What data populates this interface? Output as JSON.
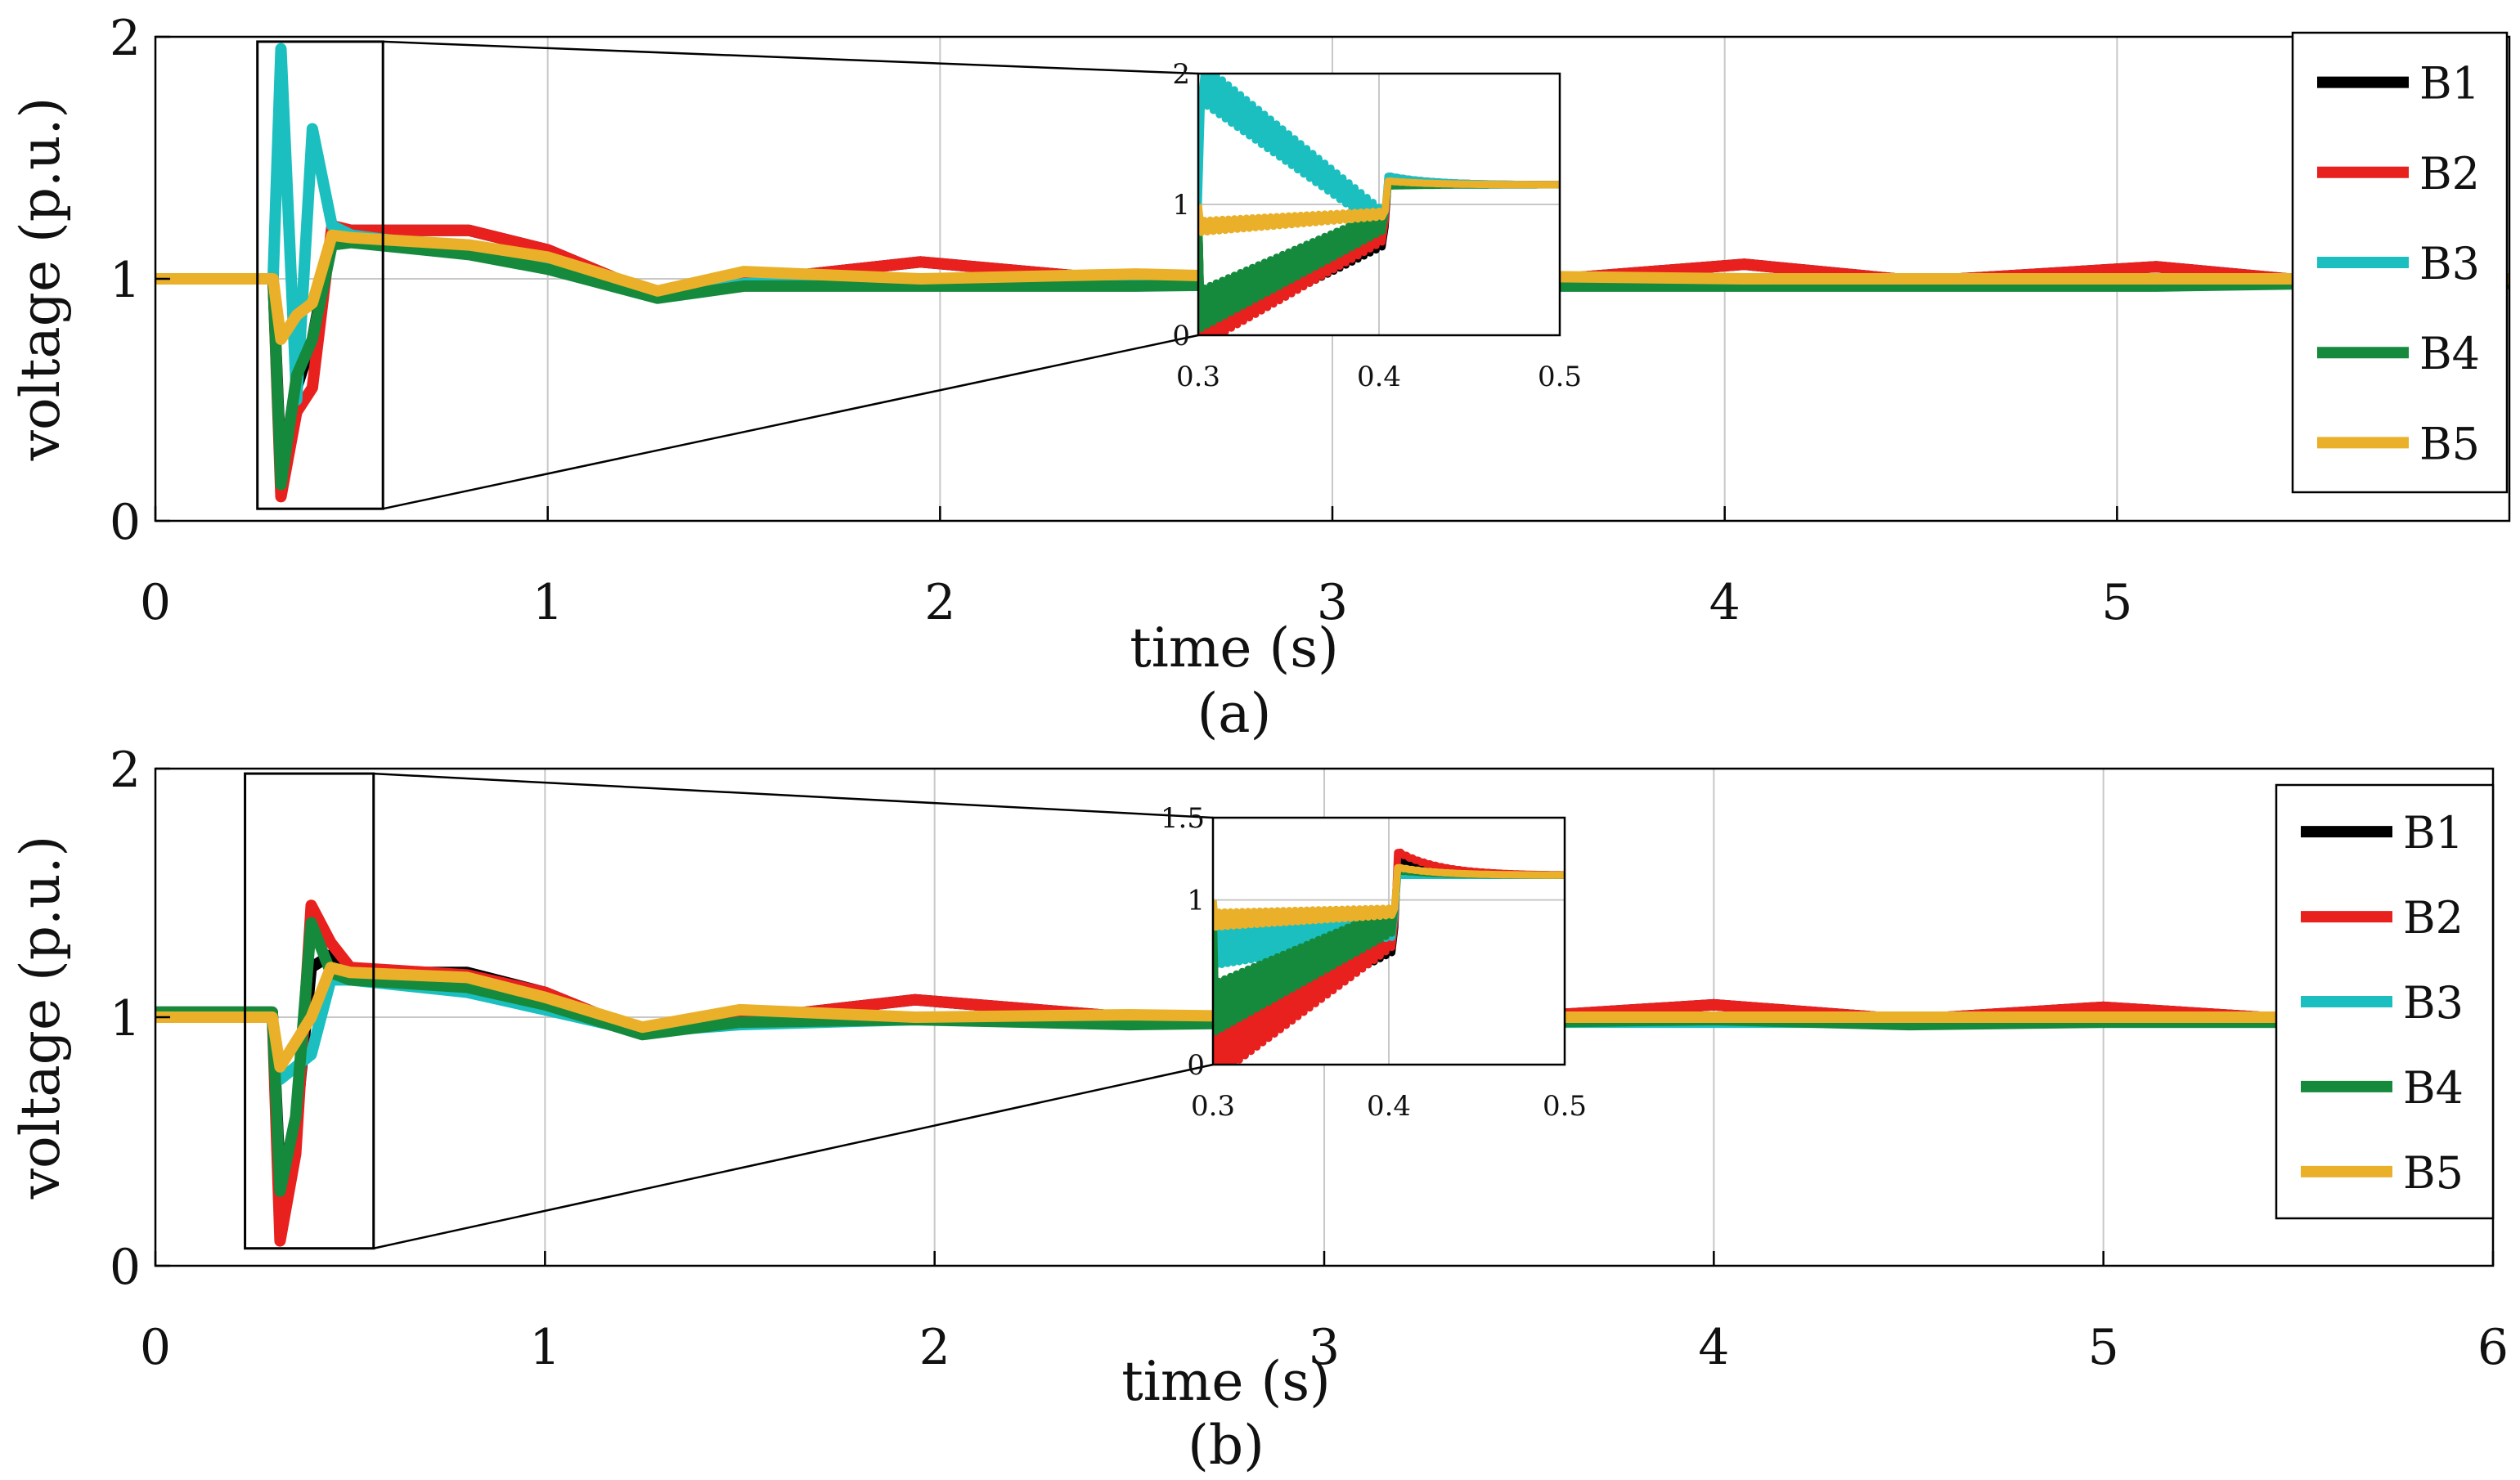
{
  "chart_data": [
    {
      "type": "line",
      "caption": "(a)",
      "xlabel": "time (s)",
      "ylabel": "voltage (p.u.)",
      "xlim": [
        0,
        6
      ],
      "ylim": [
        0,
        2
      ],
      "xticks": [
        "0",
        "1",
        "2",
        "3",
        "4",
        "5"
      ],
      "yticks": [
        "0",
        "1",
        "2"
      ],
      "grid": true,
      "legend_position": "right",
      "series": [
        {
          "name": "B1",
          "color": "#000000",
          "x": [
            0,
            0.3,
            0.32,
            0.36,
            0.4,
            0.45,
            0.5,
            0.8,
            1.0,
            1.28,
            1.5,
            1.95,
            2.5,
            3.0,
            3.5,
            4.05,
            4.5,
            5.1,
            5.5,
            6
          ],
          "y": [
            1.0,
            1.0,
            0.2,
            0.55,
            0.75,
            1.18,
            1.2,
            1.2,
            1.12,
            0.93,
            0.99,
            1.07,
            0.99,
            0.99,
            0.99,
            1.06,
            0.99,
            1.05,
            0.99,
            1.0
          ]
        },
        {
          "name": "B2",
          "color": "#e8201e",
          "x": [
            0,
            0.3,
            0.32,
            0.36,
            0.4,
            0.45,
            0.5,
            0.8,
            1.0,
            1.28,
            1.5,
            1.95,
            2.5,
            3.0,
            3.5,
            4.05,
            4.5,
            5.1,
            5.5,
            6
          ],
          "y": [
            1.0,
            1.0,
            0.1,
            0.45,
            0.55,
            1.22,
            1.2,
            1.2,
            1.12,
            0.93,
            0.99,
            1.07,
            0.99,
            0.99,
            0.99,
            1.06,
            0.99,
            1.05,
            0.99,
            1.0
          ]
        },
        {
          "name": "B3",
          "color": "#1bbfbf",
          "x": [
            0,
            0.3,
            0.32,
            0.36,
            0.4,
            0.45,
            0.5,
            0.8,
            1.0,
            1.28,
            1.5,
            1.95,
            2.5,
            3.0,
            3.5,
            4.05,
            4.5,
            5.1,
            5.5,
            6
          ],
          "y": [
            1.0,
            1.0,
            1.95,
            0.5,
            1.62,
            1.22,
            1.18,
            1.12,
            1.05,
            0.93,
            0.98,
            1.0,
            0.98,
            0.99,
            0.98,
            0.98,
            0.98,
            0.98,
            0.99,
            0.99
          ]
        },
        {
          "name": "B4",
          "color": "#158a3c",
          "x": [
            0,
            0.3,
            0.32,
            0.36,
            0.4,
            0.45,
            0.5,
            0.8,
            1.0,
            1.28,
            1.5,
            1.95,
            2.5,
            3.0,
            3.5,
            4.05,
            4.5,
            5.1,
            5.5,
            6
          ],
          "y": [
            1.0,
            1.0,
            0.15,
            0.6,
            0.75,
            1.14,
            1.15,
            1.1,
            1.04,
            0.92,
            0.97,
            0.97,
            0.97,
            0.98,
            0.97,
            0.97,
            0.97,
            0.97,
            0.98,
            0.98
          ]
        },
        {
          "name": "B5",
          "color": "#eab02a",
          "x": [
            0,
            0.3,
            0.32,
            0.36,
            0.4,
            0.45,
            0.5,
            0.8,
            1.0,
            1.28,
            1.5,
            1.95,
            2.5,
            3.0,
            3.5,
            4.05,
            4.5,
            5.1,
            5.5,
            6
          ],
          "y": [
            1.0,
            1.0,
            0.75,
            0.85,
            0.9,
            1.18,
            1.17,
            1.14,
            1.09,
            0.95,
            1.03,
            1.0,
            1.02,
            1.0,
            1.01,
            1.0,
            1.0,
            1.0,
            1.0,
            1.0
          ]
        }
      ],
      "inset": {
        "xlim": [
          0.3,
          0.5
        ],
        "ylim": [
          0,
          2
        ],
        "xticks": [
          "0.3",
          "0.4",
          "0.5"
        ],
        "yticks": [
          "0",
          "1",
          "2"
        ],
        "zoom_box_x": [
          0.26,
          0.58
        ],
        "zoom_box_y": [
          0.05,
          1.98
        ]
      }
    },
    {
      "type": "line",
      "caption": "(b)",
      "xlabel": "time (s)",
      "ylabel": "voltage (p.u.)",
      "xlim": [
        0,
        6
      ],
      "ylim": [
        0,
        2
      ],
      "xticks": [
        "0",
        "1",
        "2",
        "3",
        "4",
        "5",
        "6"
      ],
      "yticks": [
        "0",
        "1",
        "2"
      ],
      "grid": true,
      "legend_position": "right",
      "series": [
        {
          "name": "B1",
          "color": "#000000",
          "x": [
            0,
            0.3,
            0.32,
            0.36,
            0.4,
            0.45,
            0.5,
            0.8,
            1.0,
            1.25,
            1.5,
            1.95,
            2.5,
            3.0,
            3.5,
            4.0,
            4.5,
            5.0,
            5.5,
            6
          ],
          "y": [
            1.02,
            1.02,
            0.35,
            0.55,
            1.2,
            1.25,
            1.18,
            1.18,
            1.1,
            0.94,
            0.99,
            1.07,
            1.0,
            1.0,
            1.0,
            1.05,
            0.99,
            1.04,
            0.99,
            1.0
          ]
        },
        {
          "name": "B2",
          "color": "#e8201e",
          "x": [
            0,
            0.3,
            0.32,
            0.36,
            0.4,
            0.45,
            0.5,
            0.8,
            1.0,
            1.25,
            1.5,
            1.95,
            2.5,
            3.0,
            3.5,
            4.0,
            4.5,
            5.0,
            5.5,
            6
          ],
          "y": [
            1.02,
            1.02,
            0.1,
            0.45,
            1.45,
            1.3,
            1.2,
            1.17,
            1.1,
            0.94,
            0.99,
            1.07,
            1.0,
            1.0,
            1.0,
            1.05,
            0.99,
            1.04,
            0.99,
            1.0
          ]
        },
        {
          "name": "B3",
          "color": "#1bbfbf",
          "x": [
            0,
            0.3,
            0.32,
            0.36,
            0.4,
            0.45,
            0.5,
            0.8,
            1.0,
            1.25,
            1.5,
            1.95,
            2.5,
            3.0,
            3.5,
            4.0,
            4.5,
            5.0,
            5.5,
            6
          ],
          "y": [
            1.0,
            1.0,
            0.75,
            0.8,
            0.85,
            1.15,
            1.15,
            1.1,
            1.03,
            0.94,
            0.97,
            0.99,
            0.98,
            0.99,
            0.98,
            0.98,
            0.98,
            0.98,
            0.98,
            0.98
          ]
        },
        {
          "name": "B4",
          "color": "#158a3c",
          "x": [
            0,
            0.3,
            0.32,
            0.36,
            0.4,
            0.45,
            0.5,
            0.8,
            1.0,
            1.25,
            1.5,
            1.95,
            2.5,
            3.0,
            3.5,
            4.0,
            4.5,
            5.0,
            5.5,
            6
          ],
          "y": [
            1.02,
            1.02,
            0.3,
            0.6,
            1.38,
            1.18,
            1.15,
            1.12,
            1.05,
            0.93,
            0.98,
            0.99,
            0.97,
            0.98,
            0.98,
            0.99,
            0.97,
            0.98,
            0.98,
            0.99
          ]
        },
        {
          "name": "B5",
          "color": "#eab02a",
          "x": [
            0,
            0.3,
            0.32,
            0.36,
            0.4,
            0.45,
            0.5,
            0.8,
            1.0,
            1.25,
            1.5,
            1.95,
            2.5,
            3.0,
            3.5,
            4.0,
            4.5,
            5.0,
            5.5,
            6
          ],
          "y": [
            1.0,
            1.0,
            0.8,
            0.9,
            1.0,
            1.2,
            1.18,
            1.16,
            1.08,
            0.96,
            1.03,
            1.0,
            1.01,
            1.0,
            1.0,
            1.0,
            1.0,
            1.0,
            1.0,
            1.0
          ]
        }
      ],
      "inset": {
        "xlim": [
          0.3,
          0.5
        ],
        "ylim": [
          0,
          1.5
        ],
        "xticks": [
          "0.3",
          "0.4",
          "0.5"
        ],
        "yticks": [
          "0",
          "1",
          "1.5"
        ],
        "zoom_box_x": [
          0.23,
          0.56
        ],
        "zoom_box_y": [
          0.07,
          1.98
        ]
      }
    }
  ]
}
